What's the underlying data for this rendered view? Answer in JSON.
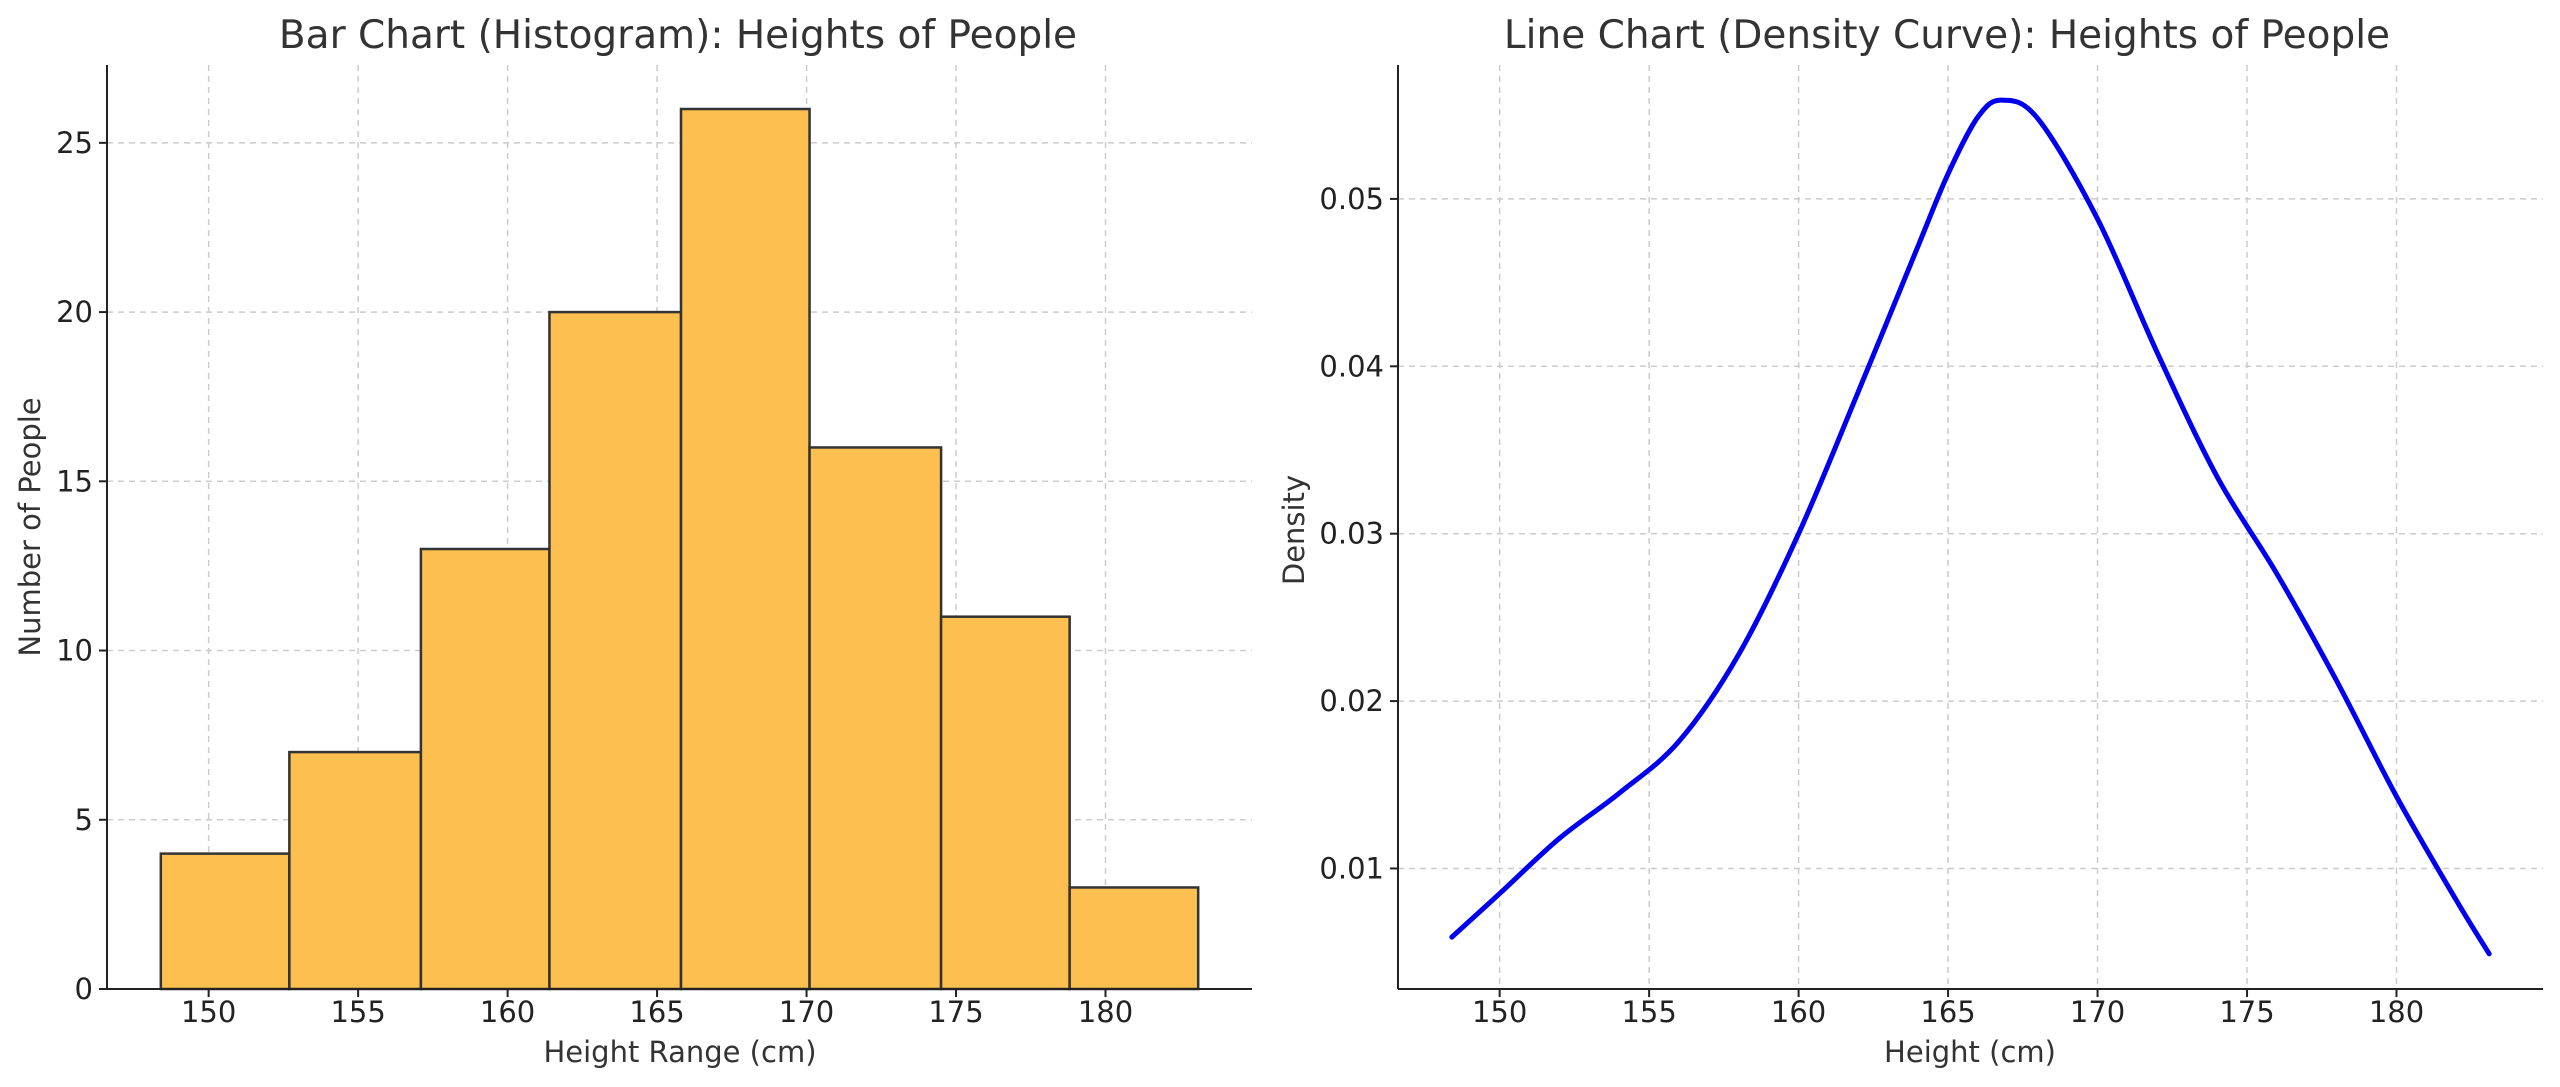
{
  "chart_data": [
    {
      "type": "bar",
      "title": "Bar Chart (Histogram): Heights of People",
      "xlabel": "Height Range (cm)",
      "ylabel": "Number of People",
      "bins": [
        [
          148.4,
          152.7
        ],
        [
          152.7,
          157.1
        ],
        [
          157.1,
          161.4
        ],
        [
          161.4,
          165.8
        ],
        [
          165.8,
          170.1
        ],
        [
          170.1,
          174.5
        ],
        [
          174.5,
          178.8
        ],
        [
          178.8,
          183.1
        ]
      ],
      "values": [
        4,
        7,
        13,
        20,
        26,
        16,
        11,
        3
      ],
      "xlim": [
        146.6,
        184.9
      ],
      "ylim": [
        0,
        27.3
      ],
      "xticks": [
        150,
        155,
        160,
        165,
        170,
        175,
        180
      ],
      "yticks": [
        0,
        5,
        10,
        15,
        20,
        25
      ],
      "bar_color": "#fdbf50",
      "edge_color": "#333333",
      "grid": true
    },
    {
      "type": "line",
      "title": "Line Chart (Density Curve): Heights of People",
      "xlabel": "Height (cm)",
      "ylabel": "Density",
      "x": [
        148.4,
        150,
        152,
        154,
        156,
        158,
        160,
        162,
        164,
        165,
        166,
        166.8,
        168,
        170,
        172,
        174,
        176,
        178,
        180,
        182,
        183.1
      ],
      "y": [
        0.0059,
        0.0085,
        0.0118,
        0.0145,
        0.0176,
        0.0228,
        0.03,
        0.0385,
        0.0472,
        0.0515,
        0.0549,
        0.0559,
        0.0548,
        0.0488,
        0.0408,
        0.0334,
        0.0276,
        0.0212,
        0.0143,
        0.0081,
        0.0049
      ],
      "xlim": [
        146.6,
        184.9
      ],
      "ylim": [
        0.0028,
        0.058
      ],
      "xticks": [
        150,
        155,
        160,
        165,
        170,
        175,
        180
      ],
      "yticks": [
        0.01,
        0.02,
        0.03,
        0.04,
        0.05
      ],
      "ytick_labels": [
        "0.01",
        "0.02",
        "0.03",
        "0.04",
        "0.05"
      ],
      "line_color": "#0000ee",
      "grid": true
    }
  ]
}
